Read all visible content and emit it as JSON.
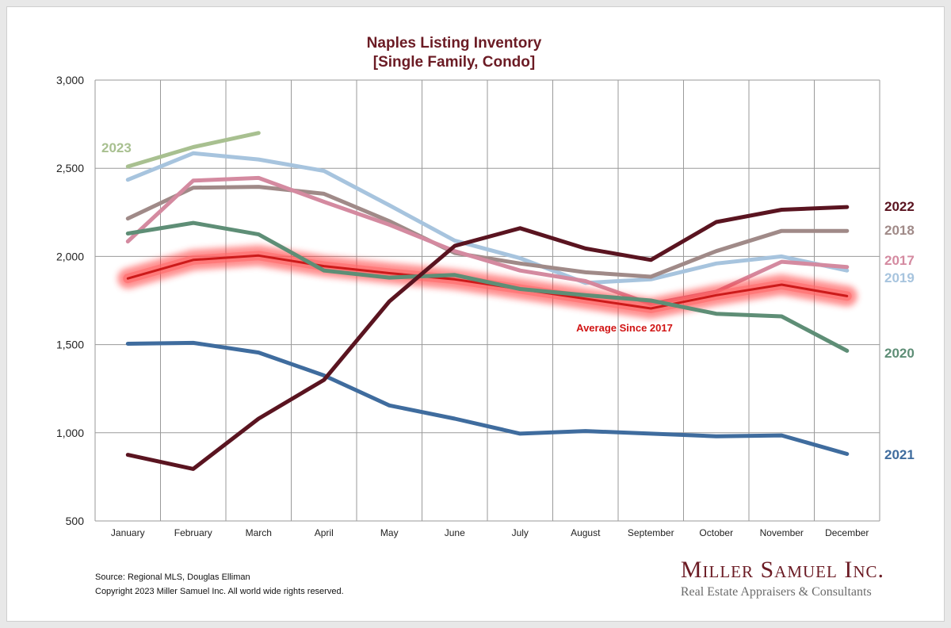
{
  "chart_data": {
    "type": "line",
    "title": [
      "Naples Listing Inventory",
      "[Single Family, Condo]"
    ],
    "categories": [
      "January",
      "February",
      "March",
      "April",
      "May",
      "June",
      "July",
      "August",
      "September",
      "October",
      "November",
      "December"
    ],
    "ylim": [
      500,
      3000
    ],
    "yticks": [
      "500",
      "1,000",
      "1,500",
      "2,000",
      "2,500",
      "3,000"
    ],
    "ytick_values": [
      500,
      1000,
      1500,
      2000,
      2500,
      3000
    ],
    "grid": true,
    "series": [
      {
        "name": "2017",
        "color": "#d48aa0",
        "values": [
          2085,
          2430,
          2445,
          2310,
          2180,
          2030,
          1920,
          1860,
          1730,
          1800,
          1970,
          1940
        ]
      },
      {
        "name": "2018",
        "color": "#a08a88",
        "values": [
          2215,
          2390,
          2395,
          2355,
          2200,
          2020,
          1960,
          1910,
          1885,
          2030,
          2145,
          2145
        ]
      },
      {
        "name": "2019",
        "color": "#a7c4de",
        "values": [
          2435,
          2585,
          2550,
          2485,
          2290,
          2090,
          1990,
          1850,
          1870,
          1960,
          2000,
          1920
        ]
      },
      {
        "name": "2020",
        "color": "#5e8e76",
        "values": [
          2130,
          2190,
          2125,
          1920,
          1880,
          1895,
          1815,
          1780,
          1750,
          1675,
          1660,
          1465
        ]
      },
      {
        "name": "2021",
        "color": "#3f6c9e",
        "values": [
          1505,
          1510,
          1455,
          1325,
          1155,
          1080,
          995,
          1010,
          995,
          980,
          985,
          880
        ]
      },
      {
        "name": "2022",
        "color": "#5a1420",
        "values": [
          875,
          795,
          1080,
          1300,
          1745,
          2060,
          2160,
          2045,
          1980,
          2195,
          2265,
          2280
        ]
      },
      {
        "name": "2023",
        "color": "#a8c090",
        "values": [
          2510,
          2620,
          2700,
          null,
          null,
          null,
          null,
          null,
          null,
          null,
          null,
          null
        ]
      },
      {
        "name": "Average Since 2017",
        "color": "#cc1a1a",
        "glow": true,
        "values": [
          1875,
          1980,
          2005,
          1945,
          1905,
          1870,
          1815,
          1760,
          1705,
          1780,
          1840,
          1775
        ]
      }
    ],
    "series_labels": [
      {
        "text": "2023",
        "color": "#a8c090"
      },
      {
        "text": "2022",
        "color": "#5a1420"
      },
      {
        "text": "2018",
        "color": "#a08a88"
      },
      {
        "text": "2017",
        "color": "#d48aa0"
      },
      {
        "text": "2019",
        "color": "#a7c4de"
      },
      {
        "text": "2020",
        "color": "#5e8e76"
      },
      {
        "text": "2021",
        "color": "#3f6c9e"
      }
    ],
    "annotation": "Average  Since 2017"
  },
  "footer": {
    "source": "Source: Regional MLS, Douglas Elliman",
    "copyright": "Copyright 2023 Miller Samuel Inc.  All world wide rights reserved."
  },
  "brand": {
    "name": "Miller Samuel Inc.",
    "tagline": "Real Estate Appraisers & Consultants"
  }
}
